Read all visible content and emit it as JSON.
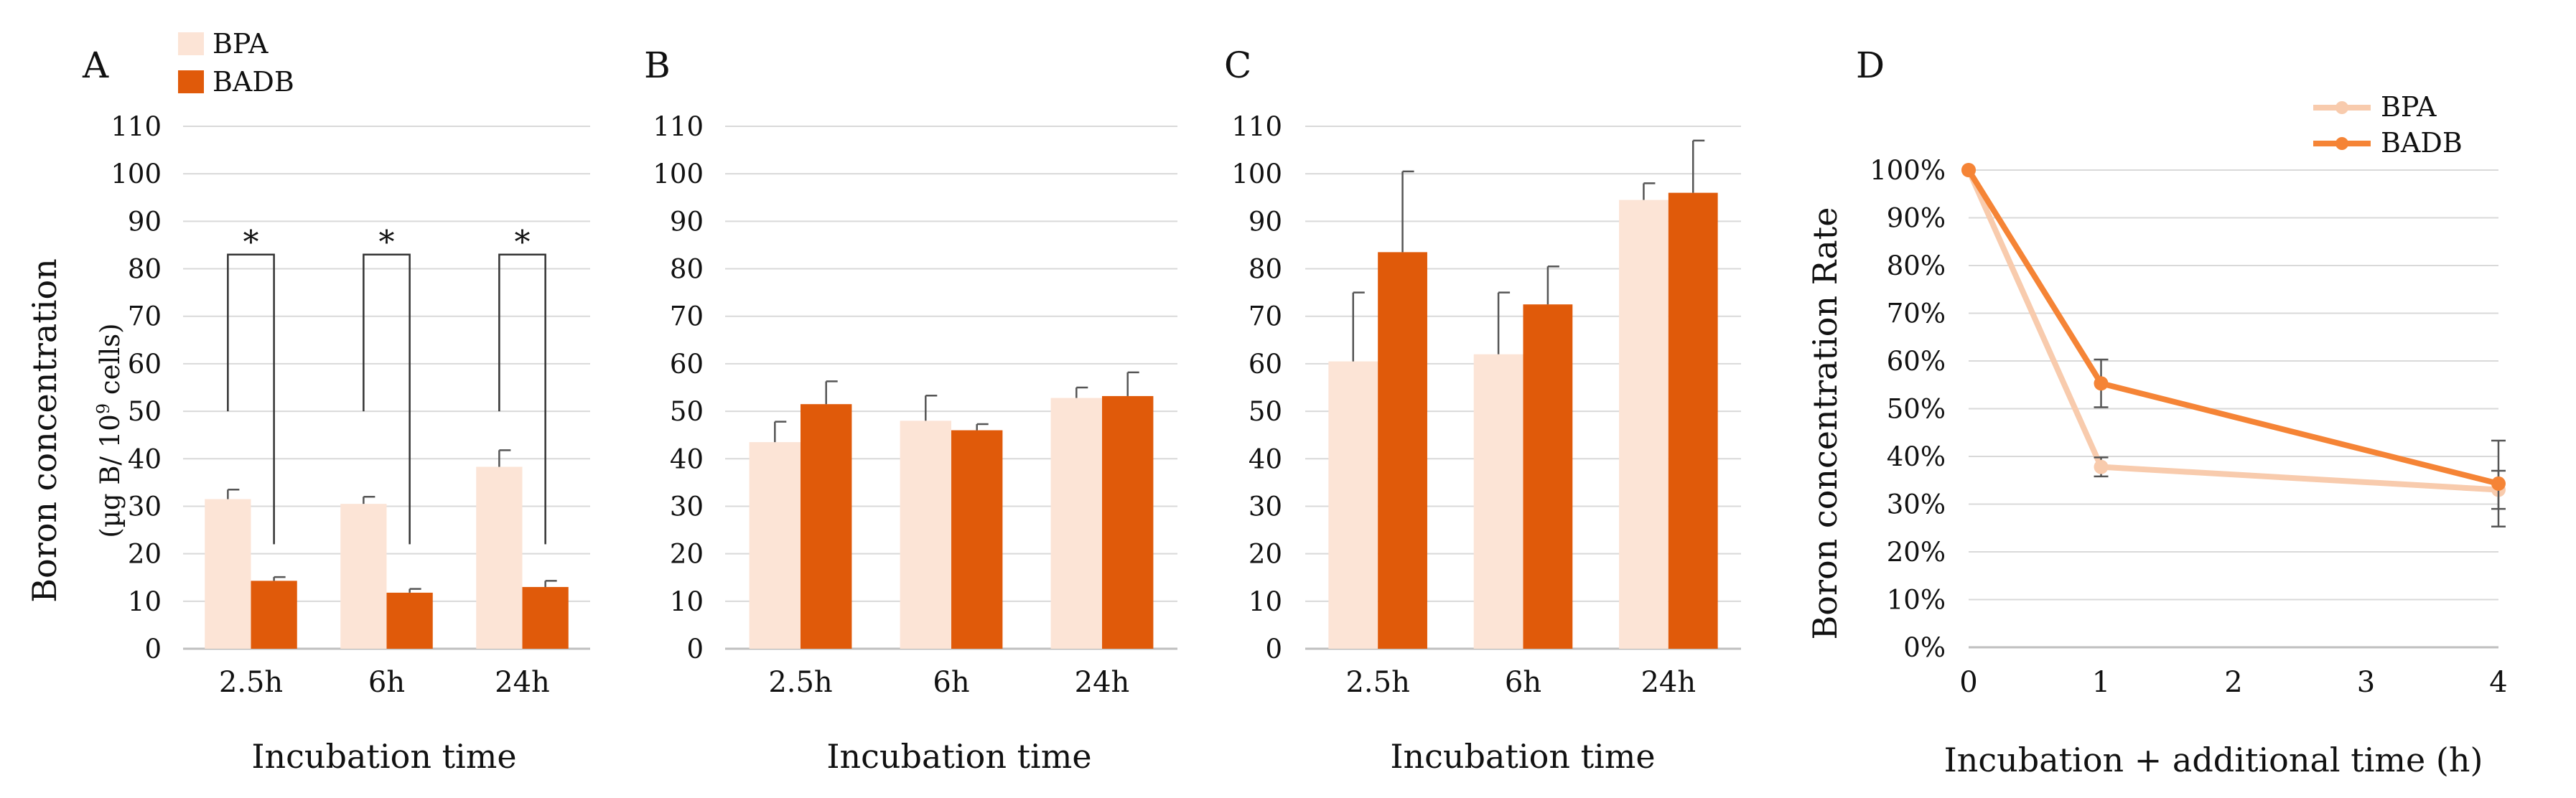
{
  "colors": {
    "bpa": "#FCE4D6",
    "badb": "#E05A0A",
    "bpa_line": "#F8CBAD",
    "badb_line": "#F58436",
    "grid": "#D9D9D9",
    "axis": "#BFBFBF",
    "err": "#555555"
  },
  "chart_data": [
    {
      "panel": "A",
      "type": "bar",
      "xlabel": "Incubation time",
      "ylabel": "Boron concentration",
      "ylabel_sub": "(µg B/ 10",
      "ylabel_sup": "9",
      "ylabel_sub_end": " cells)",
      "categories": [
        "2.5h",
        "6h",
        "24h"
      ],
      "ylim": [
        0,
        110
      ],
      "yticks": [
        0,
        10,
        20,
        30,
        40,
        50,
        60,
        70,
        80,
        90,
        100,
        110
      ],
      "grid": true,
      "legend": "top-left",
      "series": [
        {
          "name": "BPA",
          "values": [
            31.5,
            30.5,
            38.3
          ],
          "errors": [
            2.0,
            1.5,
            3.5
          ]
        },
        {
          "name": "BADB",
          "values": [
            14.3,
            11.8,
            13.0
          ],
          "errors": [
            0.8,
            0.8,
            1.3
          ]
        }
      ],
      "significance": [
        {
          "category": 0,
          "label": "*",
          "left_y": 50,
          "right_y": 22,
          "top_y": 83
        },
        {
          "category": 1,
          "label": "*",
          "left_y": 50,
          "right_y": 22,
          "top_y": 83
        },
        {
          "category": 2,
          "label": "*",
          "left_y": 50,
          "right_y": 22,
          "top_y": 83
        }
      ]
    },
    {
      "panel": "B",
      "type": "bar",
      "xlabel": "Incubation time",
      "categories": [
        "2.5h",
        "6h",
        "24h"
      ],
      "ylim": [
        0,
        110
      ],
      "yticks": [
        0,
        10,
        20,
        30,
        40,
        50,
        60,
        70,
        80,
        90,
        100,
        110
      ],
      "grid": true,
      "series": [
        {
          "name": "BPA",
          "values": [
            43.5,
            48.0,
            52.8
          ],
          "errors": [
            4.3,
            5.3,
            2.2
          ]
        },
        {
          "name": "BADB",
          "values": [
            51.5,
            46.0,
            53.2
          ],
          "errors": [
            4.8,
            1.3,
            5.0
          ]
        }
      ]
    },
    {
      "panel": "C",
      "type": "bar",
      "xlabel": "Incubation time",
      "categories": [
        "2.5h",
        "6h",
        "24h"
      ],
      "ylim": [
        0,
        110
      ],
      "yticks": [
        0,
        10,
        20,
        30,
        40,
        50,
        60,
        70,
        80,
        90,
        100,
        110
      ],
      "grid": true,
      "series": [
        {
          "name": "BPA",
          "values": [
            60.5,
            62.0,
            94.5
          ],
          "errors": [
            14.5,
            13.0,
            3.5
          ]
        },
        {
          "name": "BADB",
          "values": [
            83.5,
            72.5,
            96.0
          ],
          "errors": [
            17.0,
            8.0,
            11.0
          ]
        }
      ]
    },
    {
      "panel": "D",
      "type": "line",
      "xlabel": "Incubation + additional time (h)",
      "ylabel": "Boron concentration Rate",
      "x": [
        0,
        1,
        4
      ],
      "xticks": [
        0,
        1,
        2,
        3,
        4
      ],
      "xlim": [
        0,
        4
      ],
      "ylim": [
        0,
        100
      ],
      "yticks": [
        "0%",
        "10%",
        "20%",
        "30%",
        "40%",
        "50%",
        "60%",
        "70%",
        "80%",
        "90%",
        "100%"
      ],
      "grid": true,
      "legend": "top-right",
      "series": [
        {
          "name": "BPA",
          "values": [
            100,
            37.8,
            33.0
          ],
          "errors": [
            0,
            2.0,
            4.0
          ]
        },
        {
          "name": "BADB",
          "values": [
            100,
            55.3,
            34.3
          ],
          "errors": [
            0,
            5.0,
            9.0
          ]
        }
      ]
    }
  ]
}
